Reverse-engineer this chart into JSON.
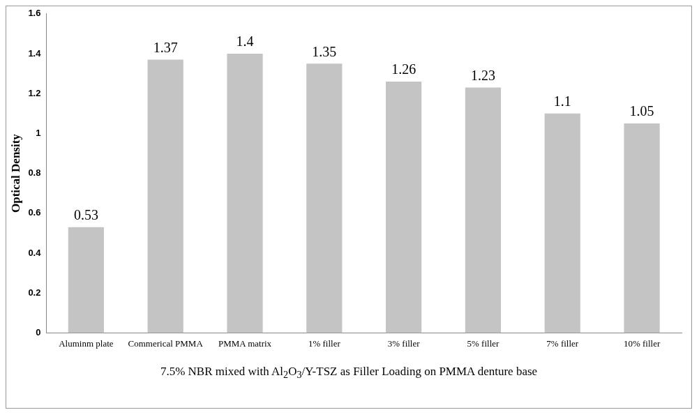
{
  "chart_data": {
    "type": "bar",
    "xlabel": "7.5% NBR mixed with Al$_{2}$O$_{3}$/Y-TSZ  as Filler Loading on PMMA denture base",
    "ylabel": "Optical Density",
    "categories": [
      "Aluminm plate",
      "Commerical PMMA",
      "PMMA matrix",
      "1% filler",
      "3% filler",
      "5% filler",
      "7% filler",
      "10% filler"
    ],
    "values": [
      0.53,
      1.37,
      1.4,
      1.35,
      1.26,
      1.23,
      1.1,
      1.05
    ],
    "color": "#c4c4c4",
    "ylim": [
      0,
      1.6
    ],
    "yticks": [
      0,
      {
        "value": 0.2,
        "label": "0.2"
      },
      {
        "value": 0.4,
        "label": "0.4"
      },
      {
        "value": 0.6,
        "label": "0.6"
      },
      {
        "value": 0.8,
        "label": "0.8"
      },
      1,
      {
        "value": 1.2,
        "label": "1.2"
      },
      {
        "value": 1.4,
        "label": "1.4"
      },
      {
        "value": 1.6,
        "label": "1.6"
      }
    ],
    "grid": false,
    "data_labels": true,
    "legend": false
  }
}
